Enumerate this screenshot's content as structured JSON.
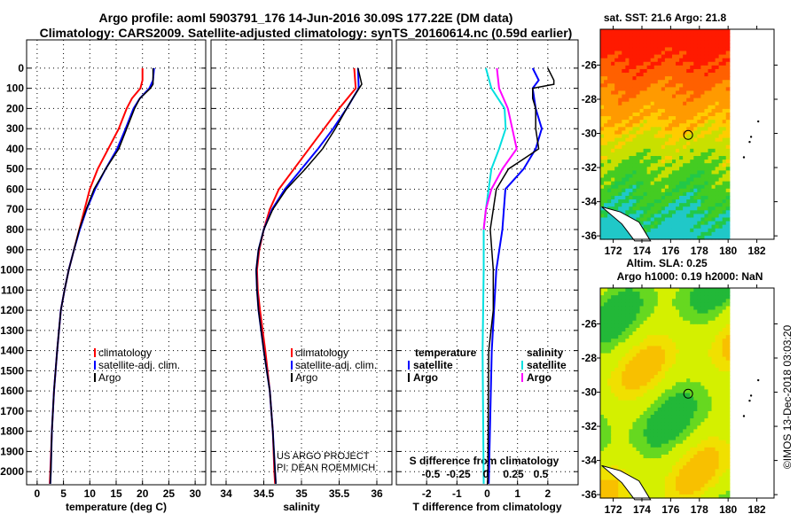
{
  "chart_data": [
    {
      "type": "line",
      "title": "Argo profile: aoml 5903791_176 14-Jun-2016 30.09S 177.22E (DM data)",
      "subtitle": "Climatology: CARS2009. Satellite-adjusted climatology: synTS_20160614.nc (0.59d earlier)",
      "xlabel": "temperature (deg C)",
      "xlim": [
        -2,
        32
      ],
      "xticks": [
        0,
        5,
        10,
        15,
        20,
        25,
        30
      ],
      "ylim": [
        2065,
        -140
      ],
      "yticks": [
        0,
        100,
        200,
        300,
        400,
        500,
        600,
        700,
        800,
        900,
        1000,
        1100,
        1200,
        1300,
        1400,
        1500,
        1600,
        1700,
        1800,
        1900,
        2000
      ],
      "legend": [
        "climatology",
        "satellite-adj. clim.",
        "Argo"
      ],
      "legend_position": "center-right",
      "series": [
        {
          "name": "climatology",
          "color": "#ff0000",
          "points": [
            [
              20,
              0
            ],
            [
              20,
              60
            ],
            [
              19.6,
              100
            ],
            [
              18,
              150
            ],
            [
              17,
              200
            ],
            [
              15.5,
              300
            ],
            [
              13.5,
              400
            ],
            [
              11.5,
              500
            ],
            [
              10,
              600
            ],
            [
              9,
              700
            ],
            [
              8,
              800
            ],
            [
              7,
              900
            ],
            [
              6,
              1000
            ],
            [
              5.2,
              1100
            ],
            [
              4.5,
              1200
            ],
            [
              3.8,
              1400
            ],
            [
              3.2,
              1600
            ],
            [
              2.8,
              1800
            ],
            [
              2.5,
              2000
            ],
            [
              2.4,
              2060
            ]
          ]
        },
        {
          "name": "satellite-adj. clim.",
          "color": "#0000ff",
          "points": [
            [
              22.2,
              0
            ],
            [
              22,
              60
            ],
            [
              21.3,
              100
            ],
            [
              19.5,
              150
            ],
            [
              18.3,
              200
            ],
            [
              16.8,
              300
            ],
            [
              15.2,
              400
            ],
            [
              13,
              500
            ],
            [
              11,
              600
            ],
            [
              9.4,
              700
            ],
            [
              8.1,
              800
            ],
            [
              7,
              900
            ],
            [
              6,
              1000
            ],
            [
              5.2,
              1100
            ],
            [
              4.5,
              1200
            ],
            [
              3.8,
              1400
            ],
            [
              3.2,
              1600
            ],
            [
              2.8,
              1800
            ],
            [
              2.6,
              2000
            ],
            [
              2.5,
              2060
            ]
          ]
        },
        {
          "name": "Argo",
          "color": "#000000",
          "points": [
            [
              22,
              0
            ],
            [
              22,
              80
            ],
            [
              21.5,
              100
            ],
            [
              19.5,
              150
            ],
            [
              18.5,
              200
            ],
            [
              17,
              300
            ],
            [
              15.5,
              400
            ],
            [
              13,
              500
            ],
            [
              10.8,
              600
            ],
            [
              9.3,
              700
            ],
            [
              8,
              800
            ],
            [
              7,
              900
            ],
            [
              6,
              1000
            ],
            [
              5.2,
              1100
            ],
            [
              4.5,
              1200
            ],
            [
              3.8,
              1400
            ],
            [
              3.2,
              1600
            ],
            [
              2.8,
              1800
            ],
            [
              2.6,
              2000
            ],
            [
              2.5,
              2060
            ]
          ]
        }
      ]
    },
    {
      "type": "line",
      "xlabel": "salinity",
      "xlim": [
        33.8,
        36.2
      ],
      "xticks": [
        34,
        34.5,
        35,
        35.5,
        36
      ],
      "legend": [
        "climatology",
        "satellite-adj. clim.",
        "Argo"
      ],
      "annotation": [
        "US ARGO PROJECT",
        "PI: DEAN ROEMMICH"
      ],
      "series": [
        {
          "name": "climatology",
          "color": "#ff0000",
          "points": [
            [
              35.7,
              0
            ],
            [
              35.72,
              100
            ],
            [
              35.5,
              200
            ],
            [
              35.3,
              300
            ],
            [
              35.1,
              400
            ],
            [
              34.9,
              500
            ],
            [
              34.7,
              600
            ],
            [
              34.58,
              700
            ],
            [
              34.5,
              800
            ],
            [
              34.44,
              900
            ],
            [
              34.41,
              1000
            ],
            [
              34.42,
              1100
            ],
            [
              34.45,
              1200
            ],
            [
              34.52,
              1400
            ],
            [
              34.58,
              1600
            ],
            [
              34.62,
              1800
            ],
            [
              34.64,
              2000
            ],
            [
              34.65,
              2060
            ]
          ]
        },
        {
          "name": "satellite-adj. clim.",
          "color": "#0000ff",
          "points": [
            [
              35.75,
              0
            ],
            [
              35.76,
              100
            ],
            [
              35.6,
              200
            ],
            [
              35.42,
              300
            ],
            [
              35.22,
              400
            ],
            [
              35.0,
              500
            ],
            [
              34.78,
              600
            ],
            [
              34.61,
              700
            ],
            [
              34.5,
              800
            ],
            [
              34.43,
              900
            ],
            [
              34.4,
              1000
            ],
            [
              34.41,
              1100
            ],
            [
              34.43,
              1200
            ],
            [
              34.5,
              1400
            ],
            [
              34.58,
              1600
            ],
            [
              34.62,
              1800
            ],
            [
              34.65,
              2000
            ],
            [
              34.66,
              2060
            ]
          ]
        },
        {
          "name": "Argo",
          "color": "#000000",
          "points": [
            [
              35.75,
              0
            ],
            [
              35.8,
              80
            ],
            [
              35.68,
              150
            ],
            [
              35.6,
              200
            ],
            [
              35.45,
              300
            ],
            [
              35.28,
              400
            ],
            [
              35.05,
              500
            ],
            [
              34.8,
              600
            ],
            [
              34.62,
              700
            ],
            [
              34.5,
              800
            ],
            [
              34.43,
              900
            ],
            [
              34.4,
              1000
            ],
            [
              34.41,
              1100
            ],
            [
              34.43,
              1200
            ],
            [
              34.5,
              1400
            ],
            [
              34.58,
              1600
            ],
            [
              34.62,
              1800
            ],
            [
              34.65,
              2000
            ],
            [
              34.66,
              2060
            ]
          ]
        }
      ]
    },
    {
      "type": "line",
      "xlabel": "T difference from climatology",
      "xlim": [
        -3,
        3
      ],
      "xticks": [
        -2,
        -1,
        0,
        1,
        2
      ],
      "x2label": "S difference from climatology",
      "x2ticks": [
        "-0.5",
        "-0.25",
        "0",
        "0.25",
        "0.5"
      ],
      "x2lim": [
        -0.75,
        0.75
      ],
      "legend_temperature_title": "temperature",
      "legend_salinity_title": "salinity",
      "legend": [
        "satellite",
        "Argo",
        "satellite",
        "Argo"
      ],
      "series": [
        {
          "name": "temperature satellite",
          "color": "#0000ff",
          "axis": "T",
          "points": [
            [
              1.5,
              0
            ],
            [
              1.7,
              60
            ],
            [
              1.5,
              100
            ],
            [
              1.6,
              200
            ],
            [
              1.8,
              300
            ],
            [
              1.6,
              400
            ],
            [
              1.2,
              500
            ],
            [
              0.6,
              600
            ],
            [
              0.5,
              800
            ],
            [
              0.3,
              1000
            ],
            [
              0.15,
              1400
            ],
            [
              0.05,
              2060
            ]
          ]
        },
        {
          "name": "temperature Argo",
          "color": "#000000",
          "axis": "T",
          "points": [
            [
              2.0,
              0
            ],
            [
              2.2,
              60
            ],
            [
              2.2,
              80
            ],
            [
              1.5,
              100
            ],
            [
              1.5,
              150
            ],
            [
              1.6,
              200
            ],
            [
              1.6,
              300
            ],
            [
              1.7,
              400
            ],
            [
              1.2,
              450
            ],
            [
              0.7,
              500
            ],
            [
              0.3,
              600
            ],
            [
              0.2,
              700
            ],
            [
              0.1,
              800
            ],
            [
              0.2,
              1000
            ],
            [
              0.2,
              1200
            ],
            [
              0.05,
              1400
            ],
            [
              0.02,
              2060
            ]
          ]
        },
        {
          "name": "salinity satellite",
          "color": "#00e0e0",
          "axis": "S",
          "points": [
            [
              0.0,
              0
            ],
            [
              0.05,
              100
            ],
            [
              0.17,
              200
            ],
            [
              0.18,
              300
            ],
            [
              0.12,
              400
            ],
            [
              0.05,
              500
            ],
            [
              0.0,
              700
            ],
            [
              -0.02,
              800
            ],
            [
              -0.02,
              1000
            ],
            [
              -0.03,
              1400
            ],
            [
              -0.02,
              2060
            ]
          ]
        },
        {
          "name": "salinity Argo",
          "color": "#ff00ff",
          "axis": "S",
          "points": [
            [
              0.1,
              0
            ],
            [
              0.12,
              100
            ],
            [
              0.2,
              200
            ],
            [
              0.24,
              300
            ],
            [
              0.28,
              400
            ],
            [
              0.15,
              500
            ],
            [
              0.05,
              600
            ],
            [
              0,
              700
            ],
            [
              -0.02,
              800
            ]
          ]
        }
      ]
    },
    {
      "type": "heatmap",
      "title": "sat. SST: 21.6 Argo: 21.8",
      "xticks": [
        172,
        174,
        176,
        178,
        180,
        182
      ],
      "yticks": [
        -26,
        -28,
        -30,
        -32,
        -34,
        -36
      ],
      "xlim": [
        171.1,
        183.2
      ],
      "ylim": [
        -36.2,
        -23.9
      ],
      "marker": [
        177.22,
        -30.09
      ]
    },
    {
      "type": "heatmap",
      "title": "Altim. SLA: 0.25",
      "subtitle": "Argo h1000: 0.19 h2000: NaN",
      "xticks": [
        172,
        174,
        176,
        178,
        180,
        182
      ],
      "yticks": [
        -26,
        -28,
        -30,
        -32,
        -34,
        -36
      ],
      "xlim": [
        171.1,
        183.2
      ],
      "ylim": [
        -36.2,
        -23.9
      ],
      "marker": [
        177.22,
        -30.09
      ]
    }
  ],
  "credit": "©IMOS 13-Dec-2018 03:03:20"
}
